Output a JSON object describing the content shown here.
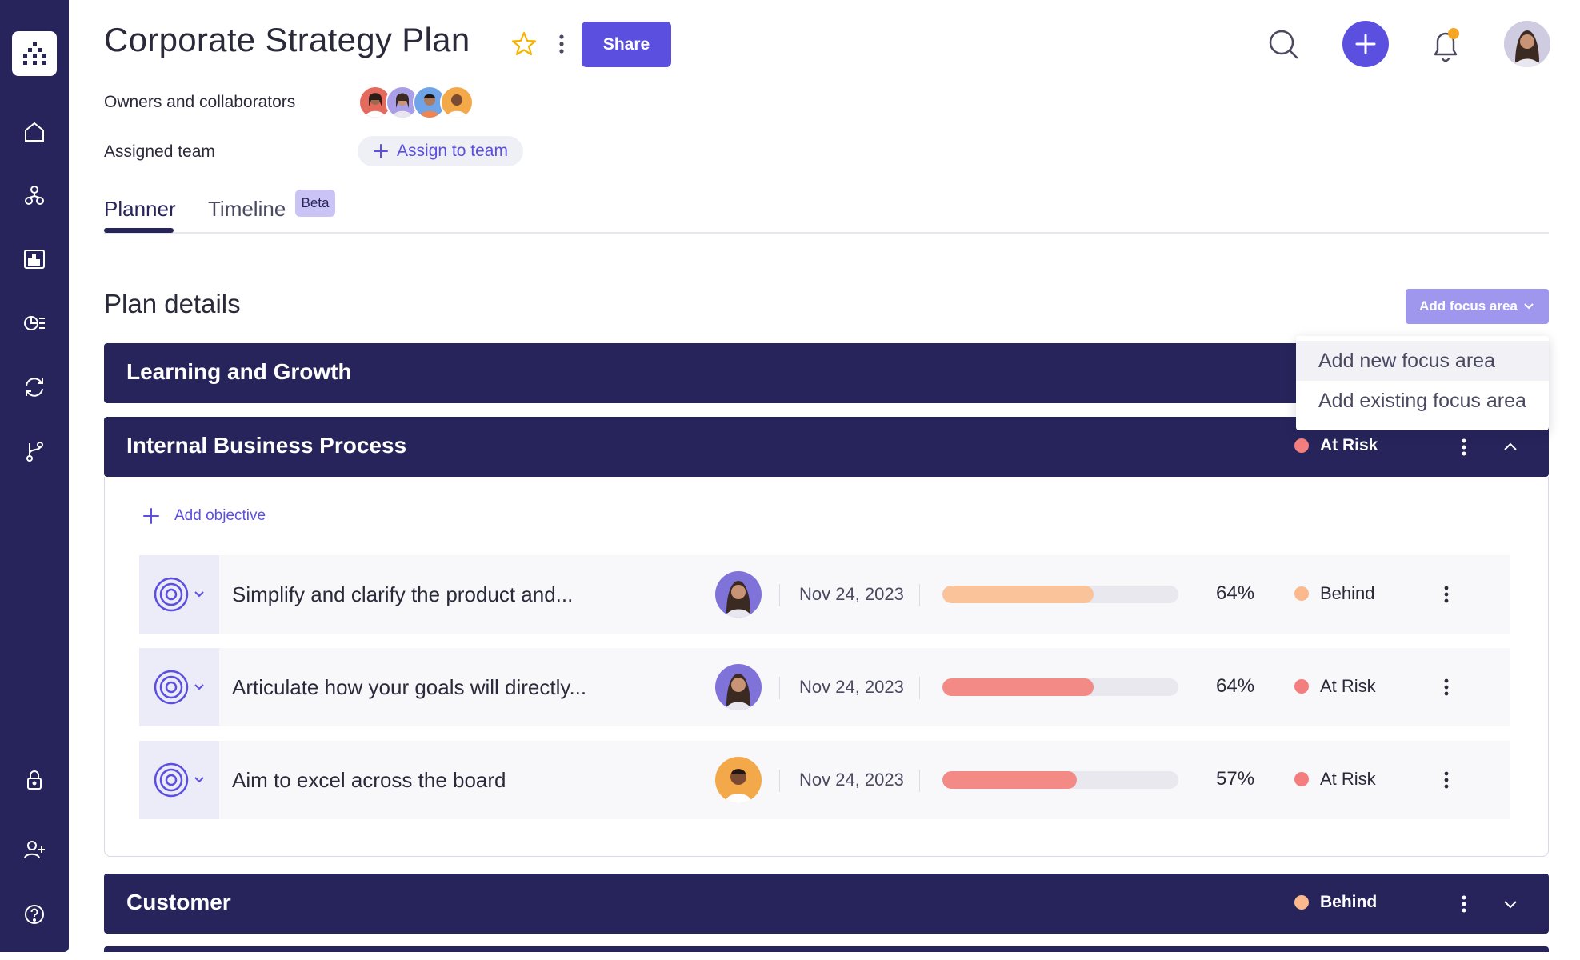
{
  "header": {
    "title": "Corporate Strategy Plan",
    "share_label": "Share",
    "owners_label": "Owners and collaborators",
    "team_label": "Assigned team",
    "assign_label": "Assign to team"
  },
  "tabs": [
    {
      "label": "Planner",
      "active": true
    },
    {
      "label": "Timeline",
      "badge": "Beta",
      "active": false
    }
  ],
  "plan": {
    "section_title": "Plan details",
    "add_focus_label": "Add focus area",
    "dropdown": [
      "Add new focus area",
      "Add existing focus area"
    ]
  },
  "focus_areas": [
    {
      "title": "Learning and Growth"
    },
    {
      "title": "Internal Business Process",
      "status": "At Risk",
      "status_color": "#f47e7e",
      "expanded": true
    },
    {
      "title": "Customer",
      "status": "Behind",
      "status_color": "#fbb98d",
      "expanded": false
    }
  ],
  "add_objective_label": "Add objective",
  "objectives": [
    {
      "title": "Simplify and clarify the product and...",
      "date": "Nov 24, 2023",
      "progress": 0.64,
      "pct": "64%",
      "status": "Behind",
      "status_color": "#fbb98d",
      "bar_color": "#fbc39a"
    },
    {
      "title": "Articulate how your goals will directly...",
      "date": "Nov 24, 2023",
      "progress": 0.64,
      "pct": "64%",
      "status": "At Risk",
      "status_color": "#f47e7e",
      "bar_color": "#f48a86"
    },
    {
      "title": "Aim to excel across the board",
      "date": "Nov 24, 2023",
      "progress": 0.57,
      "pct": "57%",
      "status": "At Risk",
      "status_color": "#f47e7e",
      "bar_color": "#f48a86"
    }
  ],
  "colors": {
    "sidebar": "#26245a",
    "accent": "#5b4fe0",
    "notification": "#f5a623"
  },
  "icons": {
    "sidebar": [
      "home-icon",
      "hierarchy-icon",
      "analytics-icon",
      "reports-icon",
      "sync-icon",
      "branch-icon",
      "lock-icon",
      "add-user-icon",
      "help-icon"
    ]
  }
}
